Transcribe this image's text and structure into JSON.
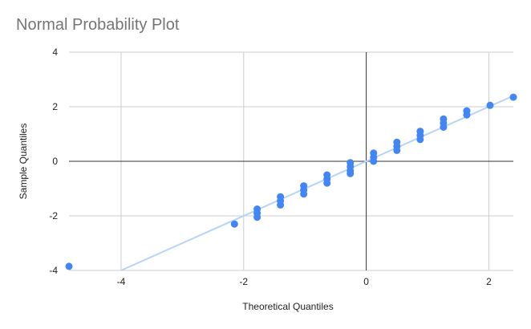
{
  "chart_data": {
    "type": "scatter",
    "title": "Normal Probability Plot",
    "xlabel": "Theoretical Quantiles",
    "ylabel": "Sample Quantiles",
    "xlim": [
      -4.85,
      2.4
    ],
    "ylim": [
      -4,
      4
    ],
    "x_ticks": [
      -4,
      -2,
      0,
      2
    ],
    "y_ticks": [
      -4,
      -2,
      0,
      2,
      4
    ],
    "grid": true,
    "legend": "none",
    "colors": {
      "points": "#4285f4",
      "trendline": "#b7d3f8",
      "grid": "#cccccc",
      "zero_axis": "#333333"
    },
    "trendline": {
      "slope": 1.0,
      "intercept": 0.0
    },
    "points": [
      {
        "x": -4.85,
        "y": -3.85
      },
      {
        "x": -2.15,
        "y": -2.3
      },
      {
        "x": -1.78,
        "y": -1.75
      },
      {
        "x": -1.78,
        "y": -1.9
      },
      {
        "x": -1.78,
        "y": -2.05
      },
      {
        "x": -1.4,
        "y": -1.3
      },
      {
        "x": -1.4,
        "y": -1.45
      },
      {
        "x": -1.4,
        "y": -1.6
      },
      {
        "x": -1.02,
        "y": -0.9
      },
      {
        "x": -1.02,
        "y": -1.05
      },
      {
        "x": -1.02,
        "y": -1.2
      },
      {
        "x": -0.64,
        "y": -0.5
      },
      {
        "x": -0.64,
        "y": -0.65
      },
      {
        "x": -0.64,
        "y": -0.8
      },
      {
        "x": -0.26,
        "y": -0.05
      },
      {
        "x": -0.26,
        "y": -0.2
      },
      {
        "x": -0.26,
        "y": -0.35
      },
      {
        "x": -0.26,
        "y": -0.45
      },
      {
        "x": 0.12,
        "y": 0.3
      },
      {
        "x": 0.12,
        "y": 0.15
      },
      {
        "x": 0.12,
        "y": 0.0
      },
      {
        "x": 0.5,
        "y": 0.7
      },
      {
        "x": 0.5,
        "y": 0.55
      },
      {
        "x": 0.5,
        "y": 0.4
      },
      {
        "x": 0.88,
        "y": 1.1
      },
      {
        "x": 0.88,
        "y": 0.95
      },
      {
        "x": 0.88,
        "y": 0.8
      },
      {
        "x": 1.26,
        "y": 1.55
      },
      {
        "x": 1.26,
        "y": 1.4
      },
      {
        "x": 1.26,
        "y": 1.25
      },
      {
        "x": 1.64,
        "y": 1.85
      },
      {
        "x": 1.64,
        "y": 1.7
      },
      {
        "x": 2.02,
        "y": 2.05
      },
      {
        "x": 2.4,
        "y": 2.35
      }
    ]
  }
}
